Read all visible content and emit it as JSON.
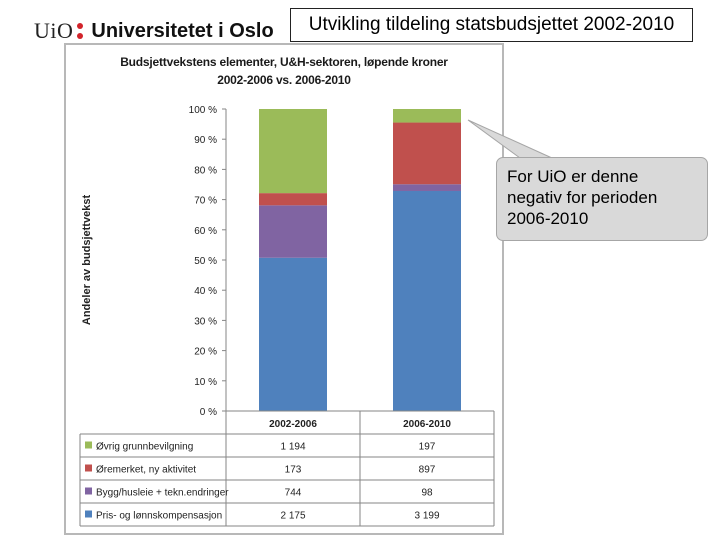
{
  "header": {
    "logo_short": "UiO",
    "logo_name": "Universitetet i Oslo",
    "slide_title": "Utvikling tildeling statsbudsjettet 2002-2010"
  },
  "callout": {
    "text": "For UiO er denne negativ for perioden 2006-2010"
  },
  "chart_data": {
    "type": "bar",
    "stacked": "percent",
    "title_line1": "Budsjettvekstens elementer, U&H-sektoren, løpende kroner",
    "title_line2": "2002-2006 vs. 2006-2010",
    "ylabel": "Andeler av budsjettvekst",
    "xlabel": "",
    "ylim": [
      0,
      100
    ],
    "yticks": [
      "0 %",
      "10 %",
      "20 %",
      "30 %",
      "40 %",
      "50 %",
      "60 %",
      "70 %",
      "80 %",
      "90 %",
      "100 %"
    ],
    "gridlines": false,
    "legend": "table-below",
    "categories": [
      "2002-2006",
      "2006-2010"
    ],
    "series": [
      {
        "name": "Pris- og lønnskompensasjon",
        "color": "#4f81bd",
        "values": [
          2175,
          3199
        ],
        "labels": [
          "2 175",
          "3 199"
        ]
      },
      {
        "name": "Bygg/husleie + tekn.endringer",
        "color": "#8064a2",
        "values": [
          744,
          98
        ],
        "labels": [
          "744",
          "98"
        ]
      },
      {
        "name": "Øremerket, ny aktivitet",
        "color": "#c0504d",
        "values": [
          173,
          897
        ],
        "labels": [
          "173",
          "897"
        ]
      },
      {
        "name": "Øvrig grunnbevilgning",
        "color": "#9bbb59",
        "values": [
          1194,
          197
        ],
        "labels": [
          "1 194",
          "197"
        ]
      }
    ]
  }
}
